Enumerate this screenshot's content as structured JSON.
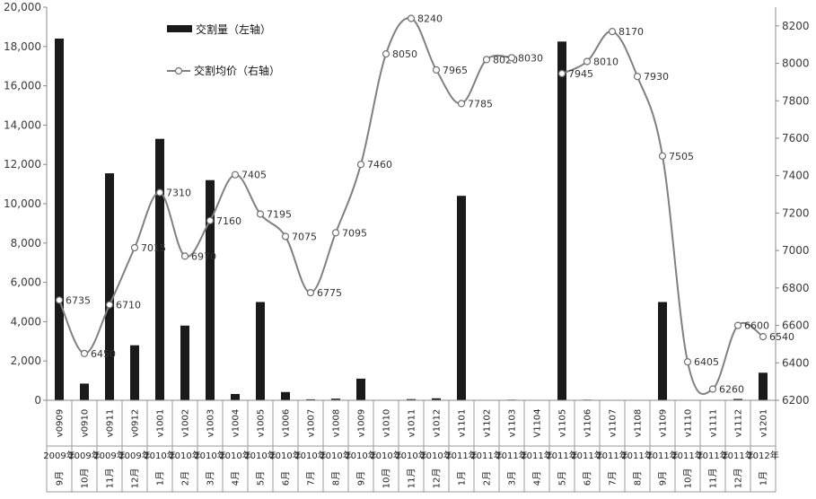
{
  "chart_data": {
    "type": "bar",
    "categories": [
      {
        "code": "v0909",
        "date": "2009年9月"
      },
      {
        "code": "v0910",
        "date": "2009年10月"
      },
      {
        "code": "v0911",
        "date": "2009年11月"
      },
      {
        "code": "v0912",
        "date": "2009年12月"
      },
      {
        "code": "v1001",
        "date": "2010年1月"
      },
      {
        "code": "v1002",
        "date": "2010年2月"
      },
      {
        "code": "v1003",
        "date": "2010年3月"
      },
      {
        "code": "v1004",
        "date": "2010年4月"
      },
      {
        "code": "v1005",
        "date": "2010年5月"
      },
      {
        "code": "v1006",
        "date": "2010年6月"
      },
      {
        "code": "v1007",
        "date": "2010年7月"
      },
      {
        "code": "v1008",
        "date": "2010年8月"
      },
      {
        "code": "v1009",
        "date": "2010年9月"
      },
      {
        "code": "v1010",
        "date": "2010年10月"
      },
      {
        "code": "v1011",
        "date": "2010年11月"
      },
      {
        "code": "v1012",
        "date": "2010年12月"
      },
      {
        "code": "v1101",
        "date": "2011年1月"
      },
      {
        "code": "v1102",
        "date": "2011年2月"
      },
      {
        "code": "v1103",
        "date": "2011年3月"
      },
      {
        "code": "V1104",
        "date": "2011年4月"
      },
      {
        "code": "v1105",
        "date": "2011年5月"
      },
      {
        "code": "v1106",
        "date": "2011年6月"
      },
      {
        "code": "v1107",
        "date": "2011年7月"
      },
      {
        "code": "v1108",
        "date": "2011年8月"
      },
      {
        "code": "v1109",
        "date": "2011年9月"
      },
      {
        "code": "v1110",
        "date": "2011年10月"
      },
      {
        "code": "v1111",
        "date": "2011年11月"
      },
      {
        "code": "v1112",
        "date": "2011年12月"
      },
      {
        "code": "v1201",
        "date": "2012年1月"
      }
    ],
    "series": [
      {
        "name": "交割量（左轴）",
        "type": "bar",
        "axis": "left",
        "color": "#1a1a1a",
        "values": [
          18400,
          850,
          11550,
          2800,
          13300,
          3800,
          11200,
          320,
          5000,
          420,
          50,
          80,
          1100,
          0,
          60,
          100,
          10400,
          0,
          30,
          0,
          18250,
          30,
          0,
          0,
          5000,
          0,
          0,
          70,
          1400
        ]
      },
      {
        "name": "交割均价（右轴）",
        "type": "line",
        "axis": "right",
        "color": "#808080",
        "values": [
          6735,
          6450,
          6710,
          7015,
          7310,
          6970,
          7160,
          7405,
          7195,
          7075,
          6775,
          7095,
          7460,
          8050,
          8240,
          7965,
          7785,
          8020,
          8030,
          null,
          7945,
          8010,
          8170,
          7930,
          7505,
          6405,
          6260,
          6600,
          6540
        ],
        "labels": [
          "6735",
          "6450",
          "6710",
          "7015",
          "7310",
          "6970",
          "7160",
          "7405",
          "7195",
          "7075",
          "6775",
          "7095",
          "7460",
          "8050",
          "8240",
          "7965",
          "7785",
          "8020",
          "8030",
          "",
          "7945",
          "8010",
          "8170",
          "7930",
          "7505",
          "6405",
          "6260",
          "6600",
          "6540"
        ]
      }
    ],
    "ylim_left": [
      0,
      20000
    ],
    "yticks_left": [
      "0",
      "2,000",
      "4,000",
      "6,000",
      "8,000",
      "10,000",
      "12,000",
      "14,000",
      "16,000",
      "18,000",
      "20,000"
    ],
    "ylim_right": [
      6200,
      8300
    ],
    "yticks_right": [
      "6200",
      "6400",
      "6600",
      "6800",
      "7000",
      "7200",
      "7400",
      "7600",
      "7800",
      "8000",
      "8200"
    ],
    "legend_position": "top-left",
    "grid": false
  }
}
